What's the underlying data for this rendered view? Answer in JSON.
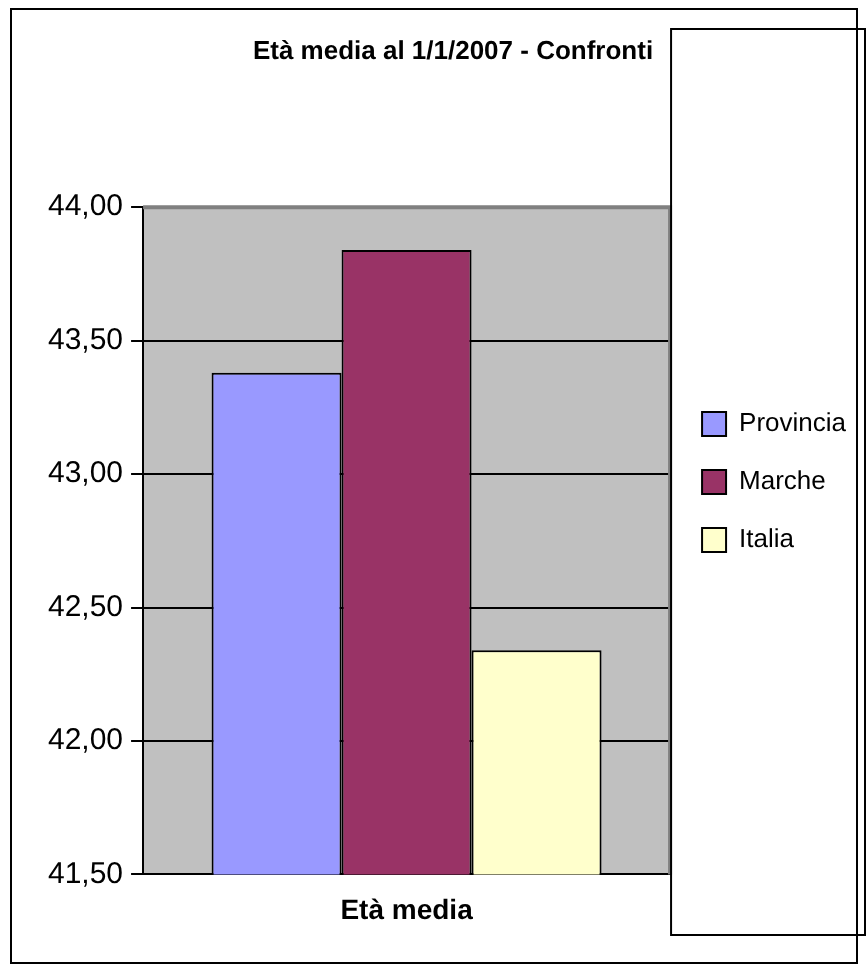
{
  "chart_data": {
    "type": "bar",
    "title": "Età media al 1/1/2007 - Confronti",
    "xlabel": "Età media",
    "categories": [
      null
    ],
    "series": [
      {
        "name": "Provincia",
        "color": "#9999ff",
        "values": [
          43.38
        ]
      },
      {
        "name": "Marche",
        "color": "#993366",
        "values": [
          43.84
        ]
      },
      {
        "name": "Italia",
        "color": "#ffffcc",
        "values": [
          42.34
        ]
      }
    ],
    "ylim": [
      41.5,
      44
    ],
    "yticks": [
      {
        "value": 41.5,
        "label": "41,50"
      },
      {
        "value": 42,
        "label": "42,00"
      },
      {
        "value": 42.5,
        "label": "42,50"
      },
      {
        "value": 43,
        "label": "43,00"
      },
      {
        "value": 43.5,
        "label": "43,50"
      },
      {
        "value": 44,
        "label": "44,00"
      }
    ],
    "grid": "y",
    "legend": "right"
  }
}
